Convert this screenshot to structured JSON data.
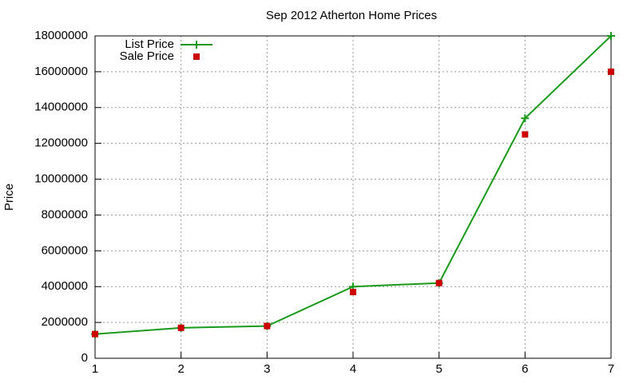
{
  "chart_data": {
    "type": "line",
    "title": "Sep 2012 Atherton Home Prices",
    "y_label": "Price",
    "x": [
      1,
      2,
      3,
      4,
      5,
      6,
      7
    ],
    "series": [
      {
        "name": "List Price",
        "color": "#1a9a1a",
        "line": true,
        "marker": "plus",
        "values": [
          1350000,
          1700000,
          1800000,
          4000000,
          4200000,
          13400000,
          18000000
        ]
      },
      {
        "name": "Sale Price",
        "color": "#cc0000",
        "line": false,
        "marker": "square",
        "values": [
          1350000,
          1700000,
          1800000,
          3700000,
          4200000,
          12500000,
          16000000
        ]
      }
    ],
    "xlim": [
      1,
      7
    ],
    "xticks": [
      1,
      2,
      3,
      4,
      5,
      6,
      7
    ],
    "ylim": [
      0,
      18000000
    ],
    "yticks": [
      0,
      2000000,
      4000000,
      6000000,
      8000000,
      10000000,
      12000000,
      14000000,
      16000000,
      18000000
    ],
    "grid": true,
    "legend": "top-left"
  }
}
